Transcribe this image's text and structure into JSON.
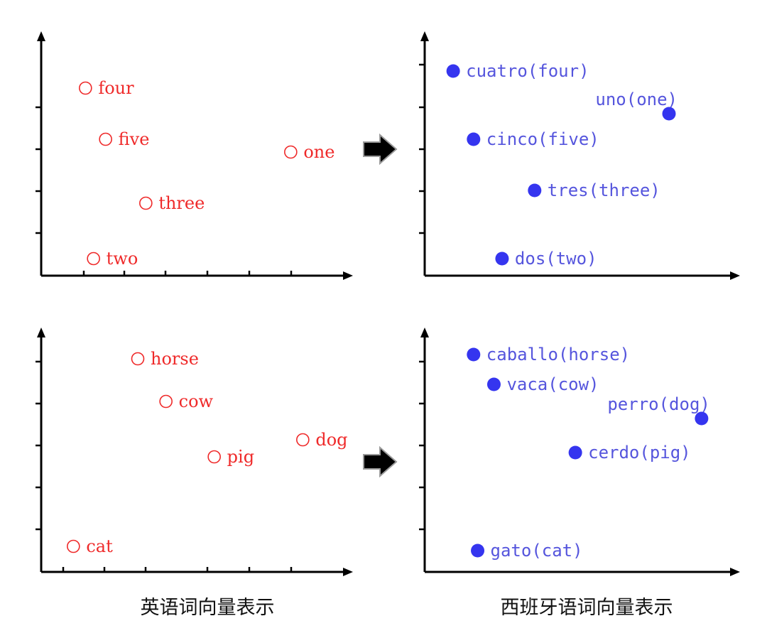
{
  "colors": {
    "english_points": "#ef2a2a",
    "spanish_points": "#3535ef",
    "spanish_labels": "#5555dd",
    "axes": "#000000"
  },
  "captions": {
    "english": "英语词向量表示",
    "spanish": "西班牙语词向量表示"
  },
  "chart_data": [
    {
      "type": "scatter",
      "language": "english",
      "marker": "hollow-circle",
      "points": [
        {
          "label": "four",
          "x": 1.1,
          "y": 4.4
        },
        {
          "label": "five",
          "x": 1.6,
          "y": 3.2
        },
        {
          "label": "one",
          "x": 6.2,
          "y": 2.9
        },
        {
          "label": "three",
          "x": 2.6,
          "y": 1.7
        },
        {
          "label": "two",
          "x": 1.3,
          "y": 0.4
        }
      ]
    },
    {
      "type": "scatter",
      "language": "spanish",
      "marker": "filled-circle",
      "points": [
        {
          "label": "cuatro(four)",
          "x": 0.7,
          "y": 4.8
        },
        {
          "label": "uno(one)",
          "x": 6.0,
          "y": 3.8
        },
        {
          "label": "cinco(five)",
          "x": 1.2,
          "y": 3.2
        },
        {
          "label": "tres(three)",
          "x": 2.7,
          "y": 2.0
        },
        {
          "label": "dos(two)",
          "x": 1.9,
          "y": 0.4
        }
      ]
    },
    {
      "type": "scatter",
      "language": "english",
      "marker": "hollow-circle",
      "points": [
        {
          "label": "horse",
          "x": 2.4,
          "y": 5.0
        },
        {
          "label": "cow",
          "x": 3.1,
          "y": 4.0
        },
        {
          "label": "dog",
          "x": 6.5,
          "y": 3.1
        },
        {
          "label": "pig",
          "x": 4.3,
          "y": 2.7
        },
        {
          "label": "cat",
          "x": 0.8,
          "y": 0.6
        }
      ]
    },
    {
      "type": "scatter",
      "language": "spanish",
      "marker": "filled-circle",
      "points": [
        {
          "label": "caballo(horse)",
          "x": 1.2,
          "y": 5.1
        },
        {
          "label": "vaca(cow)",
          "x": 1.7,
          "y": 4.4
        },
        {
          "label": "perro(dog)",
          "x": 6.8,
          "y": 3.6
        },
        {
          "label": "cerdo(pig)",
          "x": 3.7,
          "y": 2.8
        },
        {
          "label": "gato(cat)",
          "x": 1.3,
          "y": 0.5
        }
      ]
    }
  ]
}
